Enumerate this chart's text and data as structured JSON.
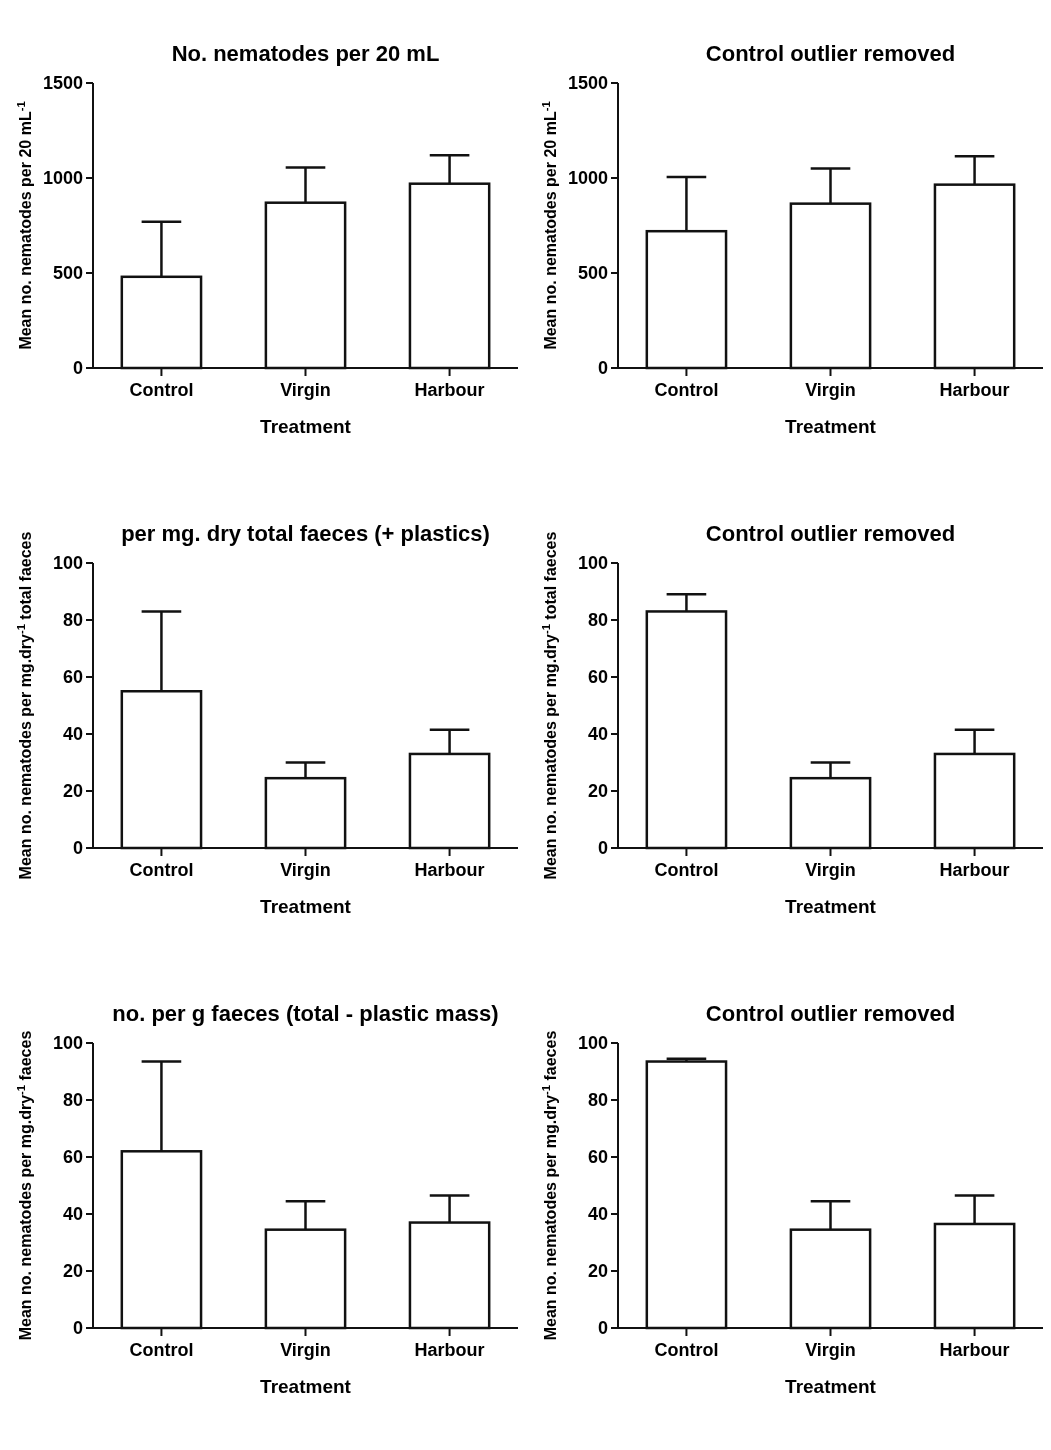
{
  "chart_data": [
    {
      "type": "bar",
      "title": "No. nematodes per 20 mL",
      "xlabel": "Treatment",
      "ylabel": "Mean no. nematodes per 20 mL$^{-1}$",
      "categories": [
        "Control",
        "Virgin",
        "Harbour"
      ],
      "values": [
        480,
        870,
        970
      ],
      "errors": [
        [
          480,
          770
        ],
        [
          870,
          1055
        ],
        [
          970,
          1120
        ]
      ],
      "color": "#ffffff",
      "ylim": [
        0,
        1500
      ],
      "yticks": [
        0,
        500,
        1000,
        1500
      ],
      "grid": false
    },
    {
      "type": "bar",
      "title": "Control outlier removed",
      "xlabel": "Treatment",
      "ylabel": "Mean no. nematodes per 20 mL$^{-1}$",
      "categories": [
        "Control",
        "Virgin",
        "Harbour"
      ],
      "values": [
        720,
        865,
        965
      ],
      "errors": [
        [
          720,
          1005
        ],
        [
          865,
          1050
        ],
        [
          965,
          1115
        ]
      ],
      "color": "#ffffff",
      "ylim": [
        0,
        1500
      ],
      "yticks": [
        0,
        500,
        1000,
        1500
      ],
      "grid": false
    },
    {
      "type": "bar",
      "title": "per mg. dry total faeces (+ plastics)",
      "xlabel": "Treatment",
      "ylabel": "Mean no. nematodes per mg.dry$^{-1}$ total faeces",
      "categories": [
        "Control",
        "Virgin",
        "Harbour"
      ],
      "values": [
        55,
        24.5,
        33
      ],
      "errors": [
        [
          55,
          83
        ],
        [
          24.5,
          30
        ],
        [
          33,
          41.5
        ]
      ],
      "color": "#ffffff",
      "ylim": [
        0,
        100
      ],
      "yticks": [
        0,
        20,
        40,
        60,
        80,
        100
      ],
      "grid": false
    },
    {
      "type": "bar",
      "title": "Control outlier removed",
      "xlabel": "Treatment",
      "ylabel": "Mean no. nematodes per mg.dry$^{-1}$ total faeces",
      "categories": [
        "Control",
        "Virgin",
        "Harbour"
      ],
      "values": [
        83,
        24.5,
        33
      ],
      "errors": [
        [
          83,
          89
        ],
        [
          24.5,
          30
        ],
        [
          33,
          41.5
        ]
      ],
      "color": "#ffffff",
      "ylim": [
        0,
        100
      ],
      "yticks": [
        0,
        20,
        40,
        60,
        80,
        100
      ],
      "grid": false
    },
    {
      "type": "bar",
      "title": "no. per g faeces (total - plastic mass)",
      "xlabel": "Treatment",
      "ylabel": "Mean no. nematodes per mg.dry$^{-1}$ faeces",
      "categories": [
        "Control",
        "Virgin",
        "Harbour"
      ],
      "values": [
        62,
        34.5,
        37
      ],
      "errors": [
        [
          62,
          93.5
        ],
        [
          34.5,
          44.5
        ],
        [
          37,
          46.5
        ]
      ],
      "color": "#ffffff",
      "ylim": [
        0,
        100
      ],
      "yticks": [
        0,
        20,
        40,
        60,
        80,
        100
      ],
      "grid": false
    },
    {
      "type": "bar",
      "title": "Control outlier removed",
      "xlabel": "Treatment",
      "ylabel": "Mean no. nematodes per mg.dry$^{-1}$ faeces",
      "categories": [
        "Control",
        "Virgin",
        "Harbour"
      ],
      "values": [
        93.5,
        34.5,
        36.5
      ],
      "errors": [
        [
          93.5,
          94.5
        ],
        [
          34.5,
          44.5
        ],
        [
          36.5,
          46.5
        ]
      ],
      "color": "#ffffff",
      "ylim": [
        0,
        100
      ],
      "yticks": [
        0,
        20,
        40,
        60,
        80,
        100
      ],
      "grid": false
    }
  ]
}
